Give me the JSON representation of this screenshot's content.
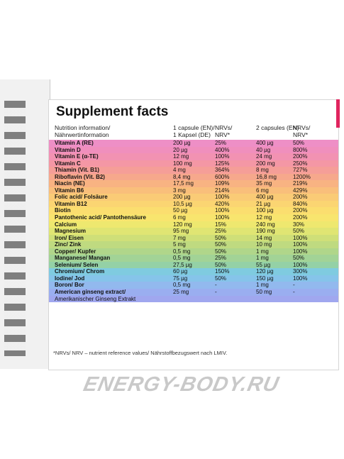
{
  "title": "Supplement facts",
  "headers": {
    "info": "Nutrition information/\nNährwertinformation",
    "dose1": "1 capsule (EN)/\n1 Kapsel (DE)",
    "nrv1": "NRVs/\nNRV*",
    "dose2": "2 capsules (EN)",
    "nrv2": "NRVs/\nNRV*"
  },
  "rows": [
    {
      "name": "Vitamin A (RE)",
      "v1": "200 µg",
      "n1": "25%",
      "v2": "400 µg",
      "n2": "50%",
      "color": "#ee8fc6"
    },
    {
      "name": "Vitamin D",
      "v1": "20 µg",
      "n1": "400%",
      "v2": "40 µg",
      "n2": "800%",
      "color": "#f08fbd"
    },
    {
      "name": "Vitamin E (α-TE)",
      "v1": "12 mg",
      "n1": "100%",
      "v2": "24 mg",
      "n2": "200%",
      "color": "#f292b2"
    },
    {
      "name": "Vitamin C",
      "v1": "100 mg",
      "n1": "125%",
      "v2": "200 mg",
      "n2": "250%",
      "color": "#f497a5"
    },
    {
      "name": "Thiamin (Vit. B1)",
      "v1": "4 mg",
      "n1": "364%",
      "v2": "8 mg",
      "n2": "727%",
      "color": "#f59e98"
    },
    {
      "name": "Riboflavin (Vit. B2)",
      "v1": "8,4 mg",
      "n1": "600%",
      "v2": "16,8 mg",
      "n2": "1200%",
      "color": "#f6a88c"
    },
    {
      "name": "Niacin (NE)",
      "v1": "17,5 mg",
      "n1": "109%",
      "v2": "35 mg",
      "n2": "219%",
      "color": "#f8b382"
    },
    {
      "name": "Vitamin B6",
      "v1": "3 mg",
      "n1": "214%",
      "v2": "6 mg",
      "n2": "429%",
      "color": "#f9bf7b"
    },
    {
      "name": "Folic acid/ Folsäure",
      "v1": "200 µg",
      "n1": "100%",
      "v2": "400 µg",
      "n2": "200%",
      "color": "#facb76"
    },
    {
      "name": "Vitamin B12",
      "v1": "10,5 µg",
      "n1": "420%",
      "v2": "21 µg",
      "n2": "840%",
      "color": "#fbd572"
    },
    {
      "name": "Biotin",
      "v1": "50 µg",
      "n1": "100%",
      "v2": "100 µg",
      "n2": "200%",
      "color": "#fbde6f"
    },
    {
      "name": "Pantothenic acid/ Pantothensäure",
      "v1": "6 mg",
      "n1": "100%",
      "v2": "12 mg",
      "n2": "200%",
      "color": "#f8e56e"
    },
    {
      "name": "Calcium",
      "v1": "120 mg",
      "n1": "15%",
      "v2": "240 mg",
      "n2": "30%",
      "color": "#eee86f"
    },
    {
      "name": "Magnesium",
      "v1": "95 mg",
      "n1": "25%",
      "v2": "190 mg",
      "n2": "50%",
      "color": "#e0e573"
    },
    {
      "name": "Iron/ Eisen",
      "v1": "7 mg",
      "n1": "50%",
      "v2": "14 mg",
      "n2": "100%",
      "color": "#cfdf78"
    },
    {
      "name": "Zinc/ Zink",
      "v1": "5 mg",
      "n1": "50%",
      "v2": "10 mg",
      "n2": "100%",
      "color": "#bfda80"
    },
    {
      "name": "Copper/ Kupfer",
      "v1": "0,5 mg",
      "n1": "50%",
      "v2": "1 mg",
      "n2": "100%",
      "color": "#b0d68a"
    },
    {
      "name": "Manganese/ Mangan",
      "v1": "0,5 mg",
      "n1": "25%",
      "v2": "1 mg",
      "n2": "50%",
      "color": "#a2d396"
    },
    {
      "name": "Selenium/ Selen",
      "v1": "27,5 µg",
      "n1": "50%",
      "v2": "55 µg",
      "n2": "100%",
      "color": "#94d1a6"
    },
    {
      "name": "Chromium/ Chrom",
      "v1": "60 µg",
      "n1": "150%",
      "v2": "120 µg",
      "n2": "300%",
      "color": "#7fcbe0"
    },
    {
      "name": "Iodine/ Jod",
      "v1": "75 µg",
      "n1": "50%",
      "v2": "150 µg",
      "n2": "100%",
      "color": "#86c4ea"
    },
    {
      "name": "Boron/ Bor",
      "v1": "0,5 mg",
      "n1": "-",
      "v2": "1 mg",
      "n2": "-",
      "color": "#92b9ee"
    },
    {
      "name": "American ginseng extract/",
      "v1": "25 mg",
      "n1": "-",
      "v2": "50 mg",
      "n2": "-",
      "color": "#9aaef0"
    },
    {
      "name": "Amerikanischer Ginseng Extrakt",
      "v1": "",
      "n1": "",
      "v2": "",
      "n2": "",
      "color": "#a0a7ef"
    }
  ],
  "footnote": "*NRVs/ NRV – nutrient reference values/ Nährstoffbezugswert nach LMIV.",
  "watermark": "ENERGY-BODY.RU"
}
